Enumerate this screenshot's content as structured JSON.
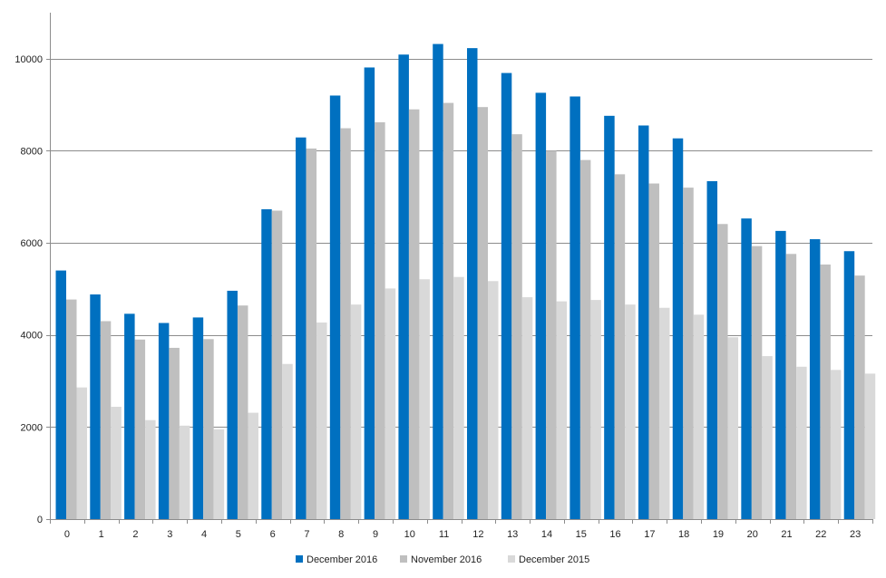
{
  "chart_data": {
    "type": "bar",
    "title": "",
    "xlabel": "",
    "ylabel": "",
    "ylim": [
      0,
      11000
    ],
    "yticks": [
      0,
      2000,
      4000,
      6000,
      8000,
      10000
    ],
    "grid": true,
    "legend_position": "bottom",
    "categories": [
      "0",
      "1",
      "2",
      "3",
      "4",
      "5",
      "6",
      "7",
      "8",
      "9",
      "10",
      "11",
      "12",
      "13",
      "14",
      "15",
      "16",
      "17",
      "18",
      "19",
      "20",
      "21",
      "22",
      "23"
    ],
    "series": [
      {
        "name": "December 2016",
        "color": "#0070c0",
        "values": [
          5400,
          4880,
          4460,
          4260,
          4380,
          4960,
          6730,
          8290,
          9200,
          9810,
          10090,
          10320,
          10230,
          9690,
          9260,
          9180,
          8760,
          8550,
          8270,
          7340,
          6530,
          6260,
          6080,
          5820
        ]
      },
      {
        "name": "November 2016",
        "color": "#bfbfbf",
        "values": [
          4770,
          4300,
          3900,
          3720,
          3910,
          4640,
          6700,
          8050,
          8490,
          8620,
          8900,
          9040,
          8950,
          8360,
          8000,
          7800,
          7490,
          7290,
          7200,
          6410,
          5930,
          5760,
          5530,
          5290
        ]
      },
      {
        "name": "December 2015",
        "color": "#d9d9d9",
        "values": [
          2860,
          2440,
          2150,
          2030,
          1950,
          2310,
          3370,
          4270,
          4660,
          5010,
          5210,
          5260,
          5170,
          4820,
          4730,
          4760,
          4660,
          4590,
          4440,
          3950,
          3540,
          3310,
          3240,
          3160
        ]
      }
    ]
  }
}
